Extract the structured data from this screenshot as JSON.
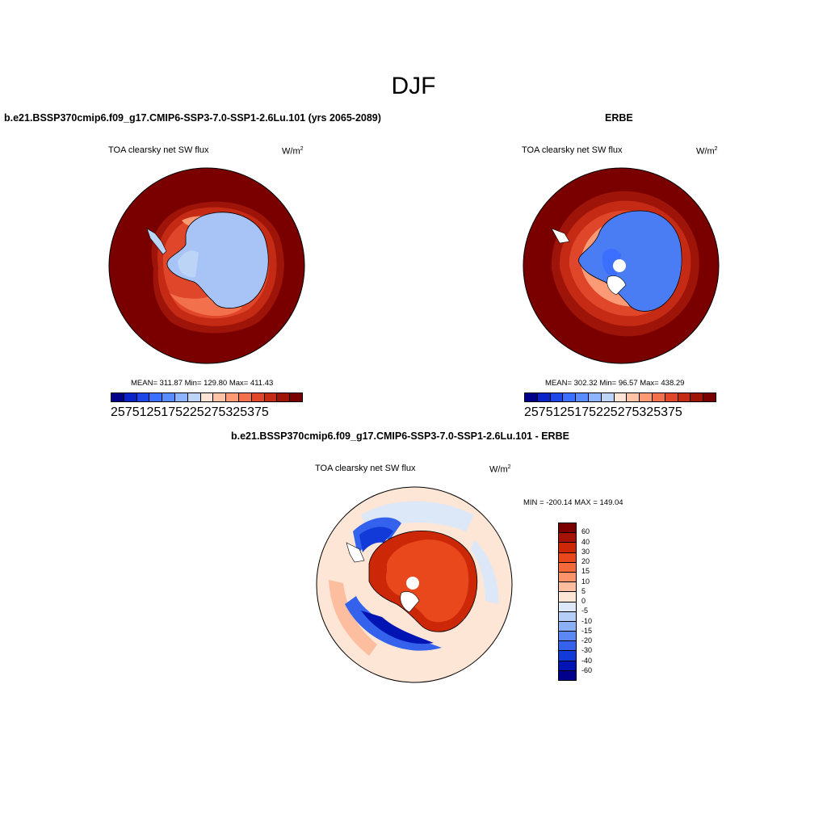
{
  "figure": {
    "season": "DJF"
  },
  "panels": {
    "model": {
      "title": "b.e21.BSSP370cmip6.f09_g17.CMIP6-SSP3-7.0-SSP1-2.6Lu.101 (yrs 2065-2089)",
      "variable": "TOA clearsky net SW flux",
      "units_base": "W/m",
      "units_exp": "2",
      "stats": "MEAN= 311.87  Min= 129.80  Max= 411.43"
    },
    "obs": {
      "title": "ERBE",
      "variable": "TOA clearsky net SW flux",
      "units_base": "W/m",
      "units_exp": "2",
      "stats": "MEAN= 302.32  Min=  96.57  Max= 438.29"
    },
    "diff": {
      "title": "b.e21.BSSP370cmip6.f09_g17.CMIP6-SSP3-7.0-SSP1-2.6Lu.101 - ERBE",
      "variable": "TOA clearsky net SW flux",
      "units_base": "W/m",
      "units_exp": "2",
      "stats": "MIN = -200.14 MAX = 149.04"
    }
  },
  "colorbars": {
    "abs": {
      "colors": [
        "#00008b",
        "#0a23c8",
        "#1e46e6",
        "#3c6eff",
        "#5a8cff",
        "#8cb4ff",
        "#bcd4f6",
        "#fbe3d6",
        "#ffc4a8",
        "#fc9a76",
        "#f2704c",
        "#e0462a",
        "#c42a14",
        "#9e1408",
        "#7a0000"
      ],
      "tick_labels": [
        "25",
        "75",
        "125",
        "175",
        "225",
        "275",
        "325",
        "375"
      ]
    },
    "diff": {
      "colors": [
        "#7a0000",
        "#a41208",
        "#cc2808",
        "#e8481c",
        "#f46a3a",
        "#fb9468",
        "#fdbea0",
        "#fde6d6",
        "#dce8f8",
        "#b4cef8",
        "#8cb0f8",
        "#5c88f4",
        "#3462ec",
        "#123ad8",
        "#0014b4",
        "#00008b"
      ],
      "tick_labels": [
        "60",
        "40",
        "30",
        "20",
        "15",
        "10",
        "5",
        "0",
        "-5",
        "-10",
        "-15",
        "-20",
        "-30",
        "-40",
        "-60"
      ]
    }
  }
}
